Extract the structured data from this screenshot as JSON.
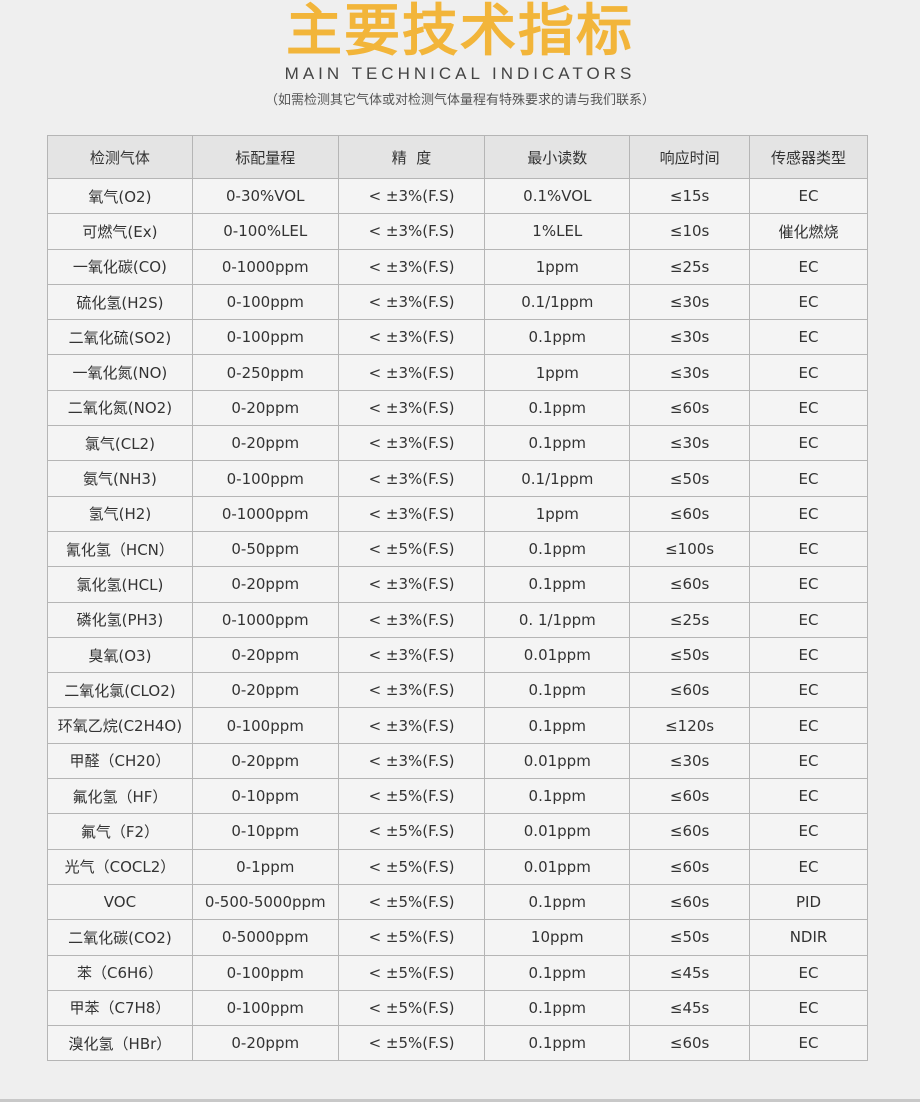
{
  "header": {
    "title": "主要技术指标",
    "subtitle": "MAIN TECHNICAL INDICATORS",
    "note": "（如需检测其它气体或对检测气体量程有特殊要求的请与我们联系）",
    "title_color": "#f2b53a"
  },
  "table": {
    "columns": [
      "检测气体",
      "标配量程",
      "精  度",
      "最小读数",
      "响应时间",
      "传感器类型"
    ],
    "rows": [
      [
        "氧气(O2)",
        "0-30%VOL",
        "< ±3%(F.S)",
        "0.1%VOL",
        "≤15s",
        "EC"
      ],
      [
        "可燃气(Ex)",
        "0-100%LEL",
        "< ±3%(F.S)",
        "1%LEL",
        "≤10s",
        "催化燃烧"
      ],
      [
        "一氧化碳(CO)",
        "0-1000ppm",
        "< ±3%(F.S)",
        "1ppm",
        "≤25s",
        "EC"
      ],
      [
        "硫化氢(H2S)",
        "0-100ppm",
        "< ±3%(F.S)",
        "0.1/1ppm",
        "≤30s",
        "EC"
      ],
      [
        "二氧化硫(SO2)",
        "0-100ppm",
        "< ±3%(F.S)",
        "0.1ppm",
        "≤30s",
        "EC"
      ],
      [
        "一氧化氮(NO)",
        "0-250ppm",
        "< ±3%(F.S)",
        "1ppm",
        "≤30s",
        "EC"
      ],
      [
        "二氧化氮(NO2)",
        "0-20ppm",
        "< ±3%(F.S)",
        "0.1ppm",
        "≤60s",
        "EC"
      ],
      [
        "氯气(CL2)",
        "0-20ppm",
        "< ±3%(F.S)",
        "0.1ppm",
        "≤30s",
        "EC"
      ],
      [
        "氨气(NH3)",
        "0-100ppm",
        "< ±3%(F.S)",
        "0.1/1ppm",
        "≤50s",
        "EC"
      ],
      [
        "氢气(H2)",
        "0-1000ppm",
        "< ±3%(F.S)",
        "1ppm",
        "≤60s",
        "EC"
      ],
      [
        "氰化氢（HCN）",
        "0-50ppm",
        "< ±5%(F.S)",
        "0.1ppm",
        "≤100s",
        "EC"
      ],
      [
        "氯化氢(HCL)",
        "0-20ppm",
        "< ±3%(F.S)",
        "0.1ppm",
        "≤60s",
        "EC"
      ],
      [
        "磷化氢(PH3)",
        "0-1000ppm",
        "< ±3%(F.S)",
        "0. 1/1ppm",
        "≤25s",
        "EC"
      ],
      [
        "臭氧(O3)",
        "0-20ppm",
        "< ±3%(F.S)",
        "0.01ppm",
        "≤50s",
        "EC"
      ],
      [
        "二氧化氯(CLO2)",
        "0-20ppm",
        "< ±3%(F.S)",
        "0.1ppm",
        "≤60s",
        "EC"
      ],
      [
        "环氧乙烷(C2H4O)",
        "0-100ppm",
        "< ±3%(F.S)",
        "0.1ppm",
        "≤120s",
        "EC"
      ],
      [
        "甲醛（CH20）",
        "0-20ppm",
        "< ±3%(F.S)",
        "0.01ppm",
        "≤30s",
        "EC"
      ],
      [
        "氟化氢（HF）",
        "0-10ppm",
        "< ±5%(F.S)",
        "0.1ppm",
        "≤60s",
        "EC"
      ],
      [
        "氟气（F2）",
        "0-10ppm",
        "< ±5%(F.S)",
        "0.01ppm",
        "≤60s",
        "EC"
      ],
      [
        "光气（COCL2）",
        "0-1ppm",
        "< ±5%(F.S)",
        "0.01ppm",
        "≤60s",
        "EC"
      ],
      [
        "VOC",
        "0-500-5000ppm",
        "< ±5%(F.S)",
        "0.1ppm",
        "≤60s",
        "PID"
      ],
      [
        "二氧化碳(CO2)",
        "0-5000ppm",
        "< ±5%(F.S)",
        "10ppm",
        "≤50s",
        "NDIR"
      ],
      [
        "苯（C6H6）",
        "0-100ppm",
        "< ±5%(F.S)",
        "0.1ppm",
        "≤45s",
        "EC"
      ],
      [
        "甲苯（C7H8）",
        "0-100ppm",
        "< ±5%(F.S)",
        "0.1ppm",
        "≤45s",
        "EC"
      ],
      [
        "溴化氢（HBr）",
        "0-20ppm",
        "< ±5%(F.S)",
        "0.1ppm",
        "≤60s",
        "EC"
      ]
    ]
  }
}
